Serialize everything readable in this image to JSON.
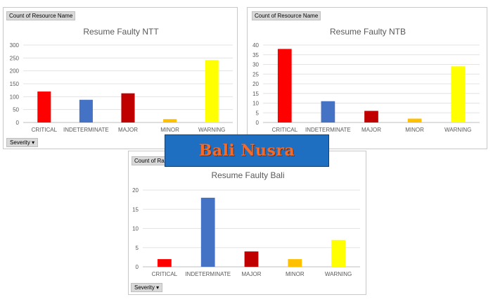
{
  "banner": {
    "text": "Bali Nusra"
  },
  "charts": [
    {
      "field_tag": "Count of Resource Name",
      "filter_label": "Severity",
      "filter_icon": "dropdown-arrow-icon"
    },
    {
      "field_tag": "Count of Resource Name",
      "filter_label": "",
      "filter_icon": ""
    },
    {
      "field_tag": "Count of Rais",
      "filter_label": "Severity",
      "filter_icon": "dropdown-arrow-icon"
    }
  ],
  "chart_data": [
    {
      "type": "bar",
      "title": "Resume Faulty NTT",
      "categories": [
        "CRITICAL",
        "INDETERMINATE",
        "MAJOR",
        "MINOR",
        "WARNING"
      ],
      "values": [
        120,
        88,
        113,
        13,
        242
      ],
      "colors": [
        "#ff0000",
        "#4472c4",
        "#c00000",
        "#ffc000",
        "#ffff00"
      ],
      "yticks": [
        0,
        50,
        100,
        150,
        200,
        250,
        300
      ],
      "ylim": [
        0,
        300
      ],
      "grid": true
    },
    {
      "type": "bar",
      "title": "Resume Faulty NTB",
      "categories": [
        "CRITICAL",
        "INDETERMINATE",
        "MAJOR",
        "MINOR",
        "WARNING"
      ],
      "values": [
        38,
        11,
        6,
        2,
        29
      ],
      "colors": [
        "#ff0000",
        "#4472c4",
        "#c00000",
        "#ffc000",
        "#ffff00"
      ],
      "yticks": [
        0,
        5,
        10,
        15,
        20,
        25,
        30,
        35,
        40
      ],
      "ylim": [
        0,
        40
      ],
      "grid": true
    },
    {
      "type": "bar",
      "title": "Resume Faulty Bali",
      "categories": [
        "CRITICAL",
        "INDETERMINATE",
        "MAJOR",
        "MINOR",
        "WARNING"
      ],
      "values": [
        2,
        18,
        4,
        2,
        7
      ],
      "colors": [
        "#ff0000",
        "#4472c4",
        "#c00000",
        "#ffc000",
        "#ffff00"
      ],
      "yticks": [
        0,
        5,
        10,
        15,
        20
      ],
      "ylim": [
        0,
        20
      ],
      "grid": true
    }
  ]
}
